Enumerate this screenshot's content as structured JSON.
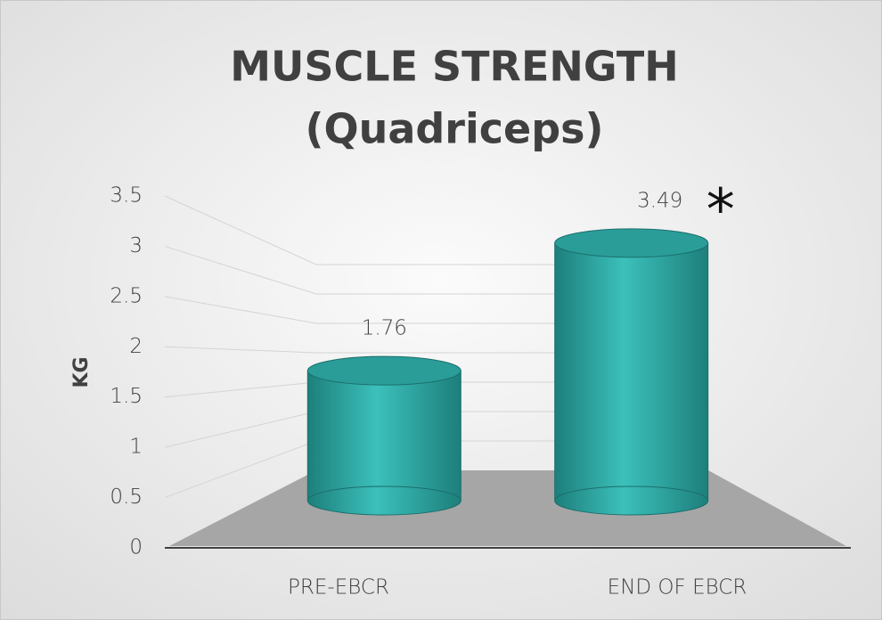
{
  "chart_data": {
    "type": "bar3d",
    "title": "MUSCLE STRENGTH",
    "subtitle": "(Quadriceps)",
    "y_label": "KG",
    "categories": [
      "PRE-EBCR",
      "END OF EBCR"
    ],
    "values": [
      1.76,
      3.49
    ],
    "color": "#2a9d99",
    "ylim": [
      0,
      3.5
    ],
    "yticks": [
      0,
      0.5,
      1,
      1.5,
      2,
      2.5,
      3,
      3.5
    ],
    "grid": true,
    "annotation": "*"
  }
}
